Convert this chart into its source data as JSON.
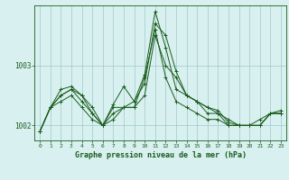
{
  "hours": [
    0,
    1,
    2,
    3,
    4,
    5,
    6,
    7,
    8,
    9,
    10,
    11,
    12,
    13,
    14,
    15,
    16,
    17,
    18,
    19,
    20,
    21,
    22,
    23
  ],
  "series": [
    [
      1001.9,
      1002.3,
      1002.4,
      1002.5,
      1002.3,
      1002.1,
      1002.0,
      1002.1,
      1002.3,
      1002.3,
      1002.8,
      1003.6,
      1002.8,
      1002.4,
      1002.3,
      1002.2,
      1002.1,
      1002.1,
      1002.0,
      1002.0,
      1002.0,
      1002.1,
      1002.2,
      1002.2
    ],
    [
      1001.9,
      1002.3,
      1002.5,
      1002.6,
      1002.4,
      1002.2,
      1002.0,
      1002.2,
      1002.3,
      1002.3,
      1002.5,
      1003.5,
      1003.0,
      1002.8,
      1002.5,
      1002.4,
      1002.3,
      1002.2,
      1002.1,
      1002.0,
      1002.0,
      1002.0,
      1002.2,
      1002.2
    ],
    [
      1001.9,
      1002.3,
      1002.5,
      1002.6,
      1002.5,
      1002.2,
      1002.0,
      1002.3,
      1002.3,
      1002.4,
      1002.7,
      1003.7,
      1003.5,
      1002.9,
      1002.5,
      1002.4,
      1002.2,
      1002.2,
      1002.0,
      1002.0,
      1002.0,
      1002.0,
      1002.2,
      1002.2
    ],
    [
      1001.9,
      1002.3,
      1002.6,
      1002.65,
      1002.5,
      1002.3,
      1002.0,
      1002.35,
      1002.65,
      1002.4,
      1002.85,
      1003.9,
      1003.3,
      1002.6,
      1002.5,
      1002.4,
      1002.3,
      1002.25,
      1002.05,
      1002.0,
      1002.0,
      1002.0,
      1002.2,
      1002.25
    ]
  ],
  "line_color": "#1a5c1a",
  "bg_color": "#d8f0f0",
  "plot_bg": "#d8f0f0",
  "grid_color": "#a0c8c8",
  "xlabel": "Graphe pression niveau de la mer (hPa)",
  "ylabel_ticks": [
    1002,
    1003
  ],
  "ylim": [
    1001.75,
    1004.0
  ],
  "xlim": [
    -0.5,
    23.5
  ],
  "marker": "+",
  "markersize": 3,
  "linewidth": 0.7
}
